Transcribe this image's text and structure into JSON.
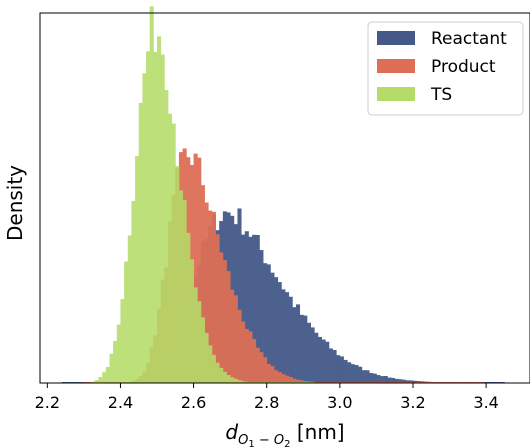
{
  "chart_data": {
    "type": "histogram",
    "xlabel_main": "d",
    "xlabel_sub": "O",
    "xlabel_sub1": "1",
    "xlabel_sep": " − ",
    "xlabel_sub2": "O",
    "xlabel_sub3": "2",
    "xlabel_unit": " [nm]",
    "ylabel": "Density",
    "xlim": [
      2.18,
      3.52
    ],
    "ylim": [
      0,
      7.6
    ],
    "x_ticks": [
      "2.2",
      "2.4",
      "2.6",
      "2.8",
      "3.0",
      "3.2",
      "3.4"
    ],
    "x_tick_values": [
      2.2,
      2.4,
      2.6,
      2.8,
      3.0,
      3.2,
      3.4
    ],
    "y_ticks_visible": false,
    "grid": false,
    "legend_placement": "top-right",
    "series": [
      {
        "name": "Reactant",
        "color": "#44598a",
        "distribution": {
          "shape": "skew-normal",
          "location": 2.6,
          "scale": 0.2,
          "skew": 3.2,
          "peak_x": 2.72,
          "peak_density": 3.5,
          "range": [
            2.24,
            3.44
          ]
        }
      },
      {
        "name": "Product",
        "color": "#dd6f57",
        "distribution": {
          "shape": "skew-normal",
          "location": 2.53,
          "scale": 0.12,
          "skew": 3.0,
          "peak_x": 2.58,
          "peak_density": 4.7,
          "range": [
            2.3,
            3.38
          ]
        }
      },
      {
        "name": "TS",
        "color": "#b5dc68",
        "distribution": {
          "shape": "skew-normal",
          "location": 2.45,
          "scale": 0.085,
          "skew": 1.6,
          "peak_x": 2.49,
          "peak_density": 7.3,
          "range": [
            2.32,
            2.92
          ]
        }
      }
    ]
  }
}
